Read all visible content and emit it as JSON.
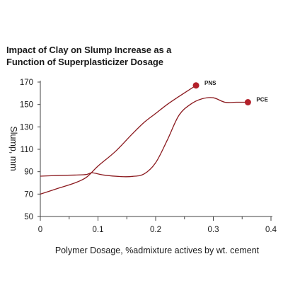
{
  "chart_data": {
    "type": "line",
    "title_lines": [
      "Impact of Clay on Slump Increase as a",
      "Function of Superplasticizer Dosage"
    ],
    "xlabel": "Polymer Dosage, %admixture actives by wt. cement",
    "ylabel": "Slump, mm",
    "xlim": [
      0,
      0.4
    ],
    "ylim": [
      50,
      170
    ],
    "x_ticks": [
      0,
      0.1,
      0.2,
      0.3,
      0.4
    ],
    "x_tick_labels": [
      "0",
      "0.1",
      "0.2",
      "0.3",
      "0.4"
    ],
    "y_ticks": [
      50,
      70,
      90,
      110,
      130,
      150,
      170
    ],
    "y_tick_labels": [
      "50",
      "70",
      "90",
      "110",
      "130",
      "150",
      "170"
    ],
    "minor_x_ticks": [
      0.05,
      0.15,
      0.25,
      0.35
    ],
    "grid": false,
    "line_color": "#8b1a1f",
    "marker_color": "#b3202a",
    "series": [
      {
        "name": "PNS",
        "x": [
          0,
          0.03,
          0.06,
          0.08,
          0.1,
          0.13,
          0.16,
          0.18,
          0.2,
          0.22,
          0.24,
          0.27
        ],
        "y": [
          70,
          75,
          80,
          85,
          95,
          108,
          124,
          134,
          142,
          150,
          157,
          167
        ],
        "end_marker": true
      },
      {
        "name": "PCE",
        "x": [
          0,
          0.03,
          0.06,
          0.08,
          0.09,
          0.11,
          0.14,
          0.16,
          0.18,
          0.2,
          0.22,
          0.24,
          0.26,
          0.28,
          0.3,
          0.32,
          0.34,
          0.36
        ],
        "y": [
          86,
          86.6,
          87,
          87.5,
          89,
          87,
          85.6,
          85.8,
          88,
          98,
          118,
          140,
          150,
          155,
          156,
          152,
          152,
          152
        ],
        "end_marker": true
      }
    ]
  }
}
